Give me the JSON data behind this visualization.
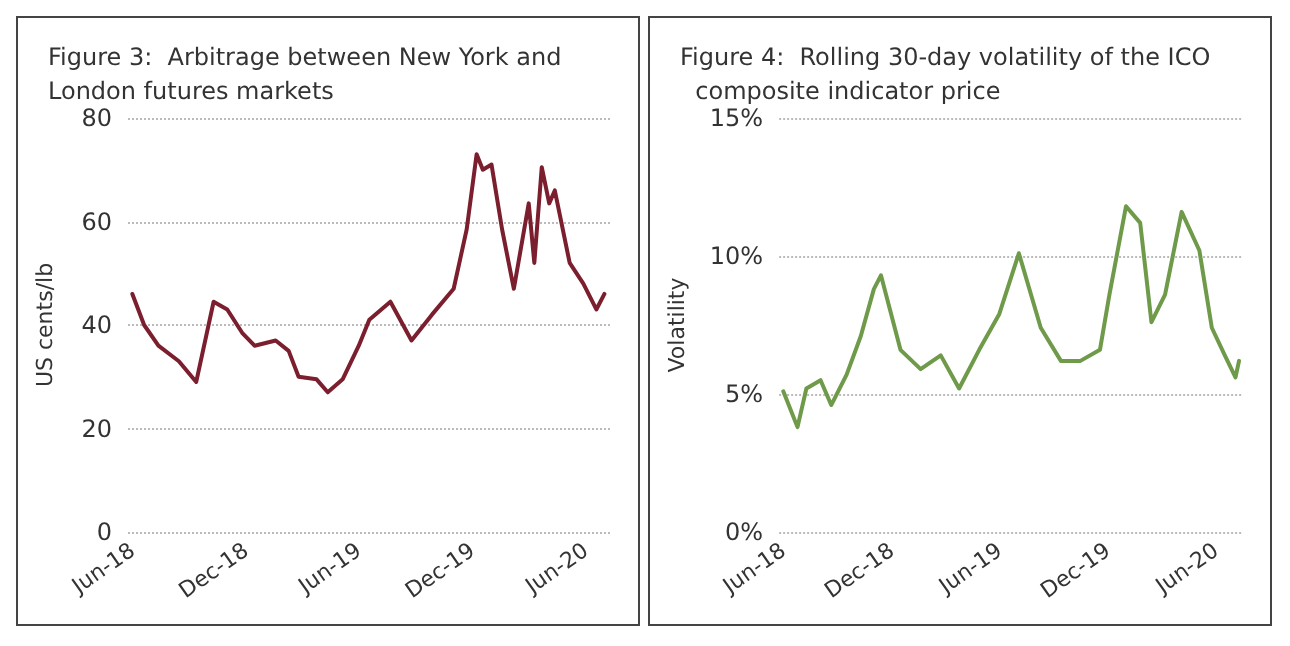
{
  "chart_data": [
    {
      "type": "line",
      "title": "Figure 3:  Arbitrage between New York and London futures markets",
      "ylabel": "US cents/lb",
      "x": [
        "2018-06-01",
        "2018-06-20",
        "2018-07-13",
        "2018-08-15",
        "2018-09-12",
        "2018-10-10",
        "2018-11-01",
        "2018-11-25",
        "2018-12-15",
        "2019-01-18",
        "2019-02-08",
        "2019-02-24",
        "2019-03-25",
        "2019-04-12",
        "2019-05-06",
        "2019-06-01",
        "2019-06-18",
        "2019-07-22",
        "2019-08-25",
        "2019-09-27",
        "2019-11-01",
        "2019-11-22",
        "2019-12-08",
        "2019-12-18",
        "2020-01-01",
        "2020-01-18",
        "2020-02-06",
        "2020-03-01",
        "2020-03-10",
        "2020-03-22",
        "2020-04-03",
        "2020-04-12",
        "2020-05-06",
        "2020-05-28",
        "2020-06-18",
        "2020-07-01"
      ],
      "series": [
        {
          "color": "#7b1e2e",
          "values": [
            46,
            40,
            36,
            33,
            29,
            44.5,
            43,
            38.5,
            36,
            37,
            35,
            30,
            29.5,
            27,
            29.5,
            36,
            41,
            44.5,
            37,
            42,
            47,
            58.5,
            73,
            70,
            71,
            58.5,
            47,
            63.5,
            52,
            70.5,
            63.5,
            66,
            52,
            48,
            43,
            46
          ]
        }
      ],
      "xlim": [
        "2018-05-25",
        "2020-07-10"
      ],
      "xticks": [
        {
          "value": "2018-06-01",
          "label": "Jun-18"
        },
        {
          "value": "2018-12-01",
          "label": "Dec-18"
        },
        {
          "value": "2019-06-01",
          "label": "Jun-19"
        },
        {
          "value": "2019-12-01",
          "label": "Dec-19"
        },
        {
          "value": "2020-06-01",
          "label": "Jun-20"
        }
      ],
      "ylim": [
        0,
        80
      ],
      "yticks": [
        0,
        20,
        40,
        60,
        80
      ],
      "grid": "y",
      "marker": "none",
      "line_style": "solid"
    },
    {
      "type": "line",
      "title": "Figure 4:  Rolling 30-day volatility of the ICO  composite indicator price",
      "ylabel": "Volatility",
      "x": [
        "2018-06-01",
        "2018-06-25",
        "2018-07-10",
        "2018-08-03",
        "2018-08-21",
        "2018-09-16",
        "2018-10-10",
        "2018-11-01",
        "2018-11-13",
        "2018-12-16",
        "2019-01-19",
        "2019-02-22",
        "2019-03-25",
        "2019-04-28",
        "2019-06-01",
        "2019-07-04",
        "2019-08-10",
        "2019-09-13",
        "2019-10-16",
        "2019-11-18",
        "2019-12-04",
        "2020-01-01",
        "2020-01-25",
        "2020-02-13",
        "2020-03-07",
        "2020-04-04",
        "2020-05-04",
        "2020-05-25",
        "2020-06-16",
        "2020-07-04",
        "2020-07-10"
      ],
      "series": [
        {
          "color": "#6e9a4a",
          "values": [
            5.1,
            3.8,
            5.2,
            5.5,
            4.6,
            5.7,
            7.1,
            8.8,
            9.3,
            6.6,
            5.9,
            6.4,
            5.2,
            6.6,
            7.9,
            10.1,
            7.4,
            6.2,
            6.2,
            6.6,
            8.6,
            11.8,
            11.2,
            7.6,
            8.6,
            11.6,
            10.2,
            7.4,
            6.4,
            5.6,
            6.2
          ]
        }
      ],
      "xlim": [
        "2018-05-25",
        "2020-07-15"
      ],
      "xticks": [
        {
          "value": "2018-06-01",
          "label": "Jun-18"
        },
        {
          "value": "2018-12-01",
          "label": "Dec-18"
        },
        {
          "value": "2019-06-01",
          "label": "Jun-19"
        },
        {
          "value": "2019-12-01",
          "label": "Dec-19"
        },
        {
          "value": "2020-06-01",
          "label": "Jun-20"
        }
      ],
      "ylim": [
        0,
        15
      ],
      "yticks": [
        {
          "value": 0,
          "label": "0%"
        },
        {
          "value": 5,
          "label": "5%"
        },
        {
          "value": 10,
          "label": "10%"
        },
        {
          "value": 15,
          "label": "15%"
        }
      ],
      "grid": "y",
      "marker": "none",
      "line_style": "solid"
    }
  ]
}
